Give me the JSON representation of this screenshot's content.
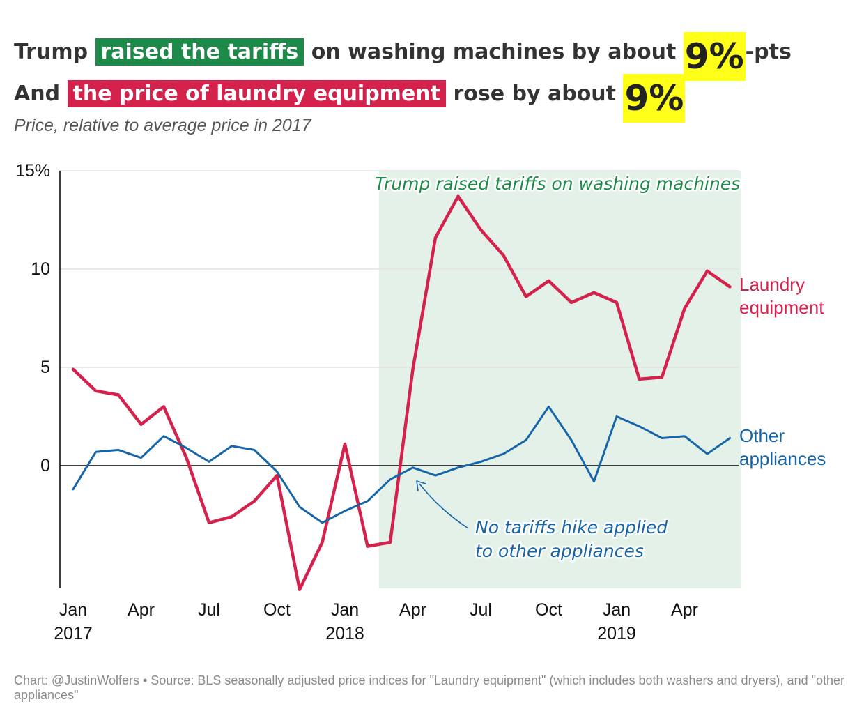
{
  "title": {
    "line1": {
      "pre": "Trump",
      "highlight": "raised the tariffs",
      "mid": "on washing machines by about",
      "big": "9%",
      "post": "-pts"
    },
    "line2": {
      "pre": "And",
      "highlight": "the price of laundry equipment",
      "mid": "rose by about",
      "big": "9%"
    }
  },
  "subtitle": "Price, relative to average price in 2017",
  "footnote": "Chart: @JustinWolfers • Source: BLS seasonally adjusted price indices for \"Laundry equipment\" (which includes both washers and dryers), and \"other appliances\"",
  "colors": {
    "laundry": "#d4224d",
    "other": "#1565a8",
    "shade": "#e4f1e8",
    "tariff_text": "#1e8a4a"
  },
  "chart_data": {
    "type": "line",
    "ylim": [
      -6.2,
      15
    ],
    "y_ticks": [
      {
        "value": 15,
        "label": "15%"
      },
      {
        "value": 10,
        "label": "10"
      },
      {
        "value": 5,
        "label": "5"
      },
      {
        "value": 0,
        "label": "0"
      }
    ],
    "x_ticks": [
      {
        "month": 0,
        "label1": "Jan",
        "label2": "2017"
      },
      {
        "month": 3,
        "label1": "Apr",
        "label2": ""
      },
      {
        "month": 6,
        "label1": "Jul",
        "label2": ""
      },
      {
        "month": 9,
        "label1": "Oct",
        "label2": ""
      },
      {
        "month": 12,
        "label1": "Jan",
        "label2": "2018"
      },
      {
        "month": 15,
        "label1": "Apr",
        "label2": ""
      },
      {
        "month": 18,
        "label1": "Jul",
        "label2": ""
      },
      {
        "month": 21,
        "label1": "Oct",
        "label2": ""
      },
      {
        "month": 24,
        "label1": "Jan",
        "label2": "2019"
      },
      {
        "month": 27,
        "label1": "Apr",
        "label2": ""
      }
    ],
    "shaded_period": {
      "start_month": 13.5,
      "end_month": 29.5
    },
    "series": [
      {
        "name": "Laundry equipment",
        "label_lines": [
          "Laundry",
          "equipment"
        ],
        "values": [
          4.9,
          3.8,
          3.6,
          2.1,
          3.0,
          0.4,
          -2.9,
          -2.6,
          -1.8,
          -0.5,
          -6.3,
          -3.9,
          1.1,
          -4.1,
          -3.9,
          4.9,
          11.6,
          13.7,
          12.0,
          10.7,
          8.6,
          9.4,
          8.3,
          8.8,
          8.3,
          4.4,
          4.5,
          8.0,
          9.9,
          9.1
        ]
      },
      {
        "name": "Other appliances",
        "label_lines": [
          "Other",
          "appliances"
        ],
        "values": [
          -1.2,
          0.7,
          0.8,
          0.4,
          1.5,
          0.9,
          0.2,
          1.0,
          0.8,
          -0.3,
          -2.1,
          -2.9,
          -2.3,
          -1.8,
          -0.7,
          -0.1,
          -0.5,
          -0.1,
          0.2,
          0.6,
          1.3,
          3.0,
          1.3,
          -0.8,
          2.5,
          2.0,
          1.4,
          1.5,
          0.6,
          1.4
        ]
      }
    ],
    "annotations": {
      "tariff_label": "Trump raised tariffs on washing machines",
      "no_tariff_label": [
        "No tariffs hike applied",
        "to other appliances"
      ]
    }
  }
}
